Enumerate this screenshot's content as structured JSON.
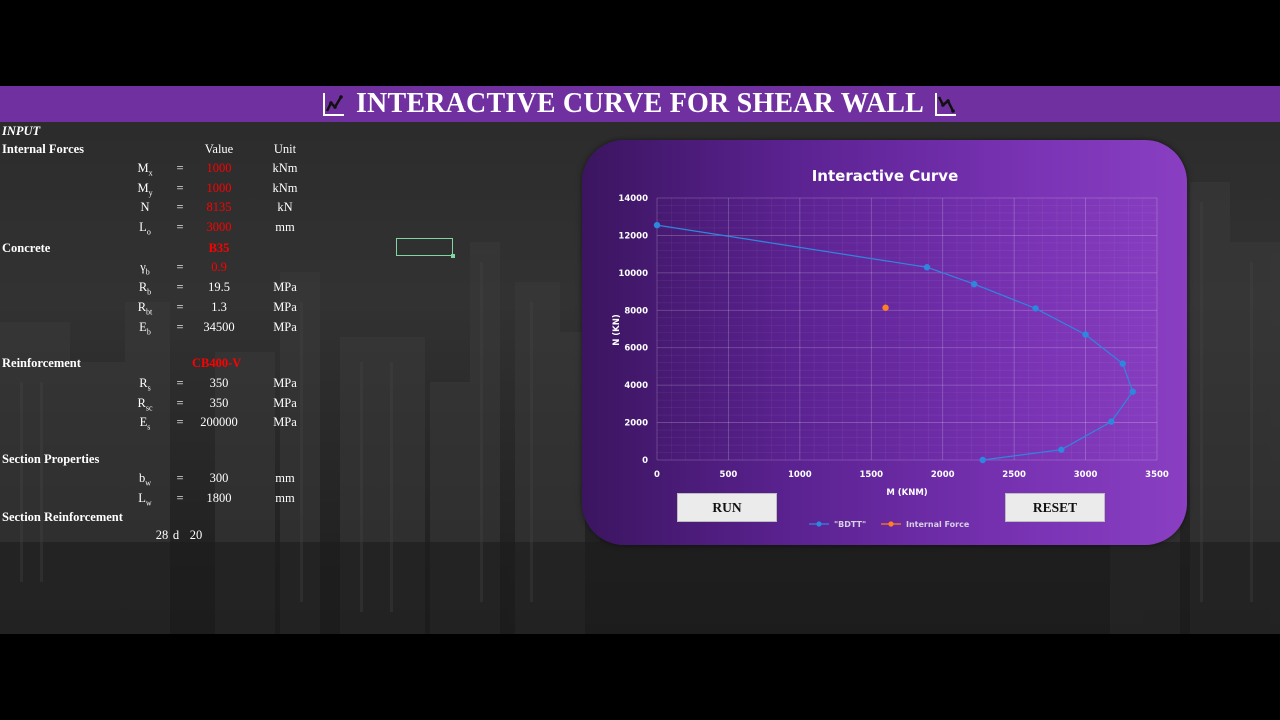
{
  "header": {
    "title": "INTERACTIVE CURVE FOR SHEAR WALL"
  },
  "colors": {
    "header_bar": "#7030a0",
    "input_value": "#ff0000",
    "series_bdtt": "#2e86de",
    "series_internal": "#ff7f27"
  },
  "sheet": {
    "input_label": "INPUT",
    "col_value": "Value",
    "col_unit": "Unit",
    "sections": {
      "internal_forces": "Internal Forces",
      "concrete": "Concrete",
      "reinforcement": "Reinforcement",
      "section_properties": "Section Properties",
      "section_reinforcement": "Section Reinforcement"
    },
    "eq": "=",
    "rows": {
      "mx": {
        "sym": "M",
        "sub": "x",
        "value": "1000",
        "unit": "kNm"
      },
      "my": {
        "sym": "M",
        "sub": "y",
        "value": "1000",
        "unit": "kNm"
      },
      "n": {
        "sym": "N",
        "value": "8135",
        "unit": "kN"
      },
      "lo": {
        "sym": "L",
        "sub": "o",
        "value": "3000",
        "unit": "mm"
      },
      "concrete_grade": "B35",
      "gb": {
        "sym": "γ",
        "sub": "b",
        "value": "0.9"
      },
      "rb": {
        "sym": "R",
        "sub": "b",
        "value": "19.5",
        "unit": "MPa"
      },
      "rbt": {
        "sym": "R",
        "sub": "bt",
        "value": "1.3",
        "unit": "MPa"
      },
      "eb": {
        "sym": "E",
        "sub": "b",
        "value": "34500",
        "unit": "MPa"
      },
      "steel_grade": "CB400-V",
      "rs": {
        "sym": "R",
        "sub": "s",
        "value": "350",
        "unit": "MPa"
      },
      "rsc": {
        "sym": "R",
        "sub": "sc",
        "value": "350",
        "unit": "MPa"
      },
      "es": {
        "sym": "E",
        "sub": "s",
        "value": "200000",
        "unit": "MPa"
      },
      "bw": {
        "sym": "b",
        "sub": "w",
        "value": "300",
        "unit": "mm"
      },
      "lw": {
        "sym": "L",
        "sub": "w",
        "value": "1800",
        "unit": "mm"
      }
    },
    "reinf": {
      "count": "28",
      "sym": "d",
      "dia": "20"
    }
  },
  "buttons": {
    "run": "RUN",
    "reset": "RESET"
  },
  "chart_data": {
    "type": "scatter",
    "title": "Interactive Curve",
    "xlabel": "M (KNM)",
    "ylabel": "N (KN)",
    "xlim": [
      0,
      3500
    ],
    "ylim": [
      0,
      14000
    ],
    "x_ticks": [
      0,
      500,
      1000,
      1500,
      2000,
      2500,
      3000,
      3500
    ],
    "y_ticks": [
      0,
      2000,
      4000,
      6000,
      8000,
      10000,
      12000,
      14000
    ],
    "legend_position": "bottom",
    "series": [
      {
        "name": "\"BDTT\"",
        "color": "#2e86de",
        "line": true,
        "points": [
          [
            0,
            12550
          ],
          [
            1890,
            10300
          ],
          [
            2220,
            9400
          ],
          [
            2650,
            8100
          ],
          [
            3000,
            6700
          ],
          [
            3260,
            5150
          ],
          [
            3330,
            3650
          ],
          [
            3180,
            2050
          ],
          [
            2830,
            550
          ],
          [
            2280,
            0
          ]
        ]
      },
      {
        "name": "Internal Force",
        "color": "#ff7f27",
        "line": false,
        "points": [
          [
            1600,
            8135
          ]
        ]
      }
    ]
  }
}
